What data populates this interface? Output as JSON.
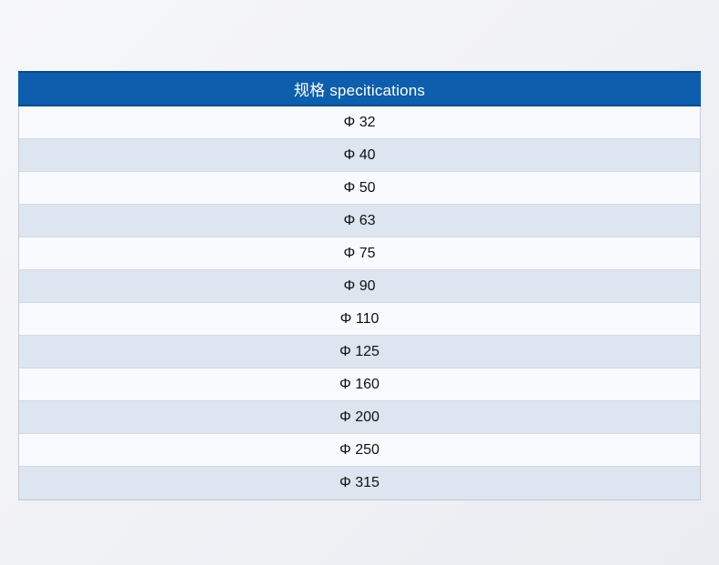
{
  "table": {
    "header_label": "规格 specitications",
    "rows": [
      "Φ 32",
      "Φ 40",
      "Φ 50",
      "Φ 63",
      "Φ 75",
      "Φ 90",
      "Φ 110",
      "Φ 125",
      "Φ 160",
      "Φ 200",
      "Φ 250",
      "Φ 315"
    ]
  },
  "colors": {
    "header_background": "#0d5eac",
    "header_border": "#0a4a8c",
    "header_text": "#ffffff",
    "row_odd_background": "#f9fafd",
    "row_even_background": "#dce5f0",
    "row_border": "#d3d9e3",
    "row_text": "#111111",
    "page_background": "#f0f1f5"
  }
}
